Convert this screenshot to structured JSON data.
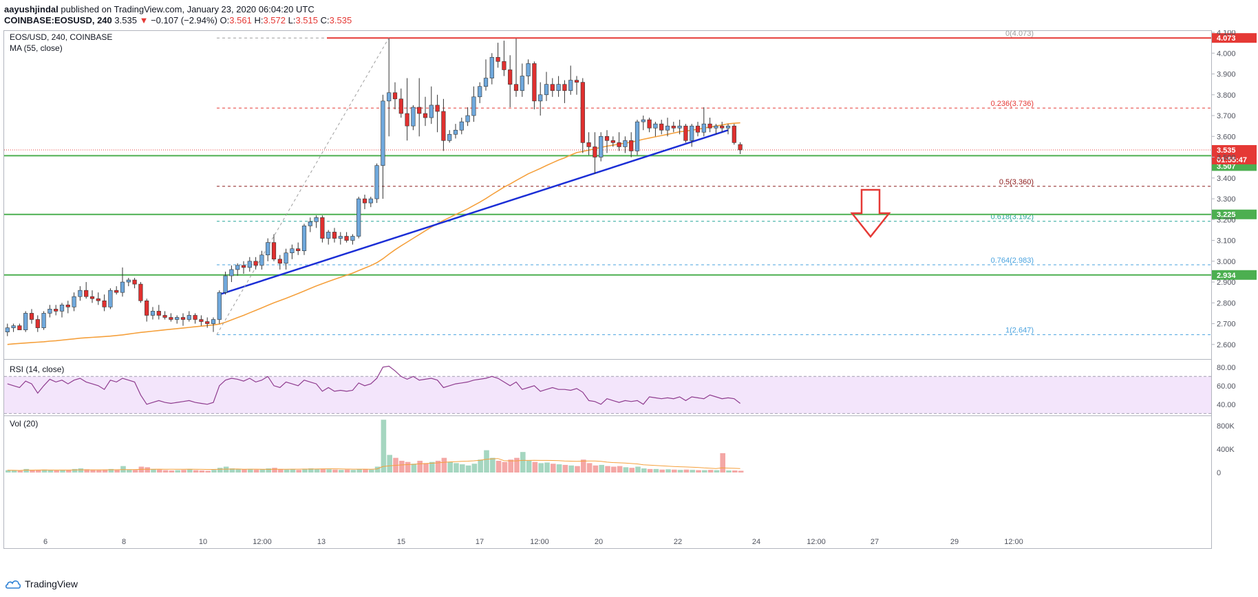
{
  "header": {
    "author": "aayushjindal",
    "published_text": "published on TradingView.com, January 23, 2020 06:04:20 UTC",
    "symbol": "COINBASE:EOSUSD, 240",
    "last": "3.535",
    "change": "−0.107 (−2.94%)",
    "o_label": "O:",
    "o": "3.561",
    "h_label": "H:",
    "h": "3.572",
    "l_label": "L:",
    "l": "3.515",
    "c_label": "C:",
    "c": "3.535"
  },
  "legend": {
    "title": "EOS/USD, 240, COINBASE",
    "ma": "MA (55, close)",
    "rsi": "RSI (14, close)",
    "vol": "Vol (20)"
  },
  "footer": {
    "brand": "TradingView"
  },
  "colors": {
    "up": "#6fa8dc",
    "down": "#e0302f",
    "ma": "#f5a03c",
    "trend": "#1b2ed6",
    "support": "#4caf50",
    "resistance": "#e53935",
    "rsi": "#8e3b8e",
    "rsi_band": "#f3e5fb"
  },
  "chart_data": {
    "type": "candlestick",
    "symbol": "EOS/USD",
    "timeframe": "240",
    "exchange": "COINBASE",
    "price_axis": [
      "2.600",
      "2.700",
      "2.800",
      "2.900",
      "3.000",
      "3.100",
      "3.200",
      "3.300",
      "3.400",
      "3.500",
      "3.600",
      "3.700",
      "3.800",
      "3.900",
      "4.000",
      "4.100"
    ],
    "ylim": [
      2.53,
      4.11
    ],
    "x_ticks": [
      "6",
      "8",
      "10",
      "12:00",
      "13",
      "15",
      "17",
      "12:00",
      "20",
      "22",
      "24",
      "12:00",
      "27",
      "29",
      "12:00"
    ],
    "candles": [
      [
        2.66,
        2.7,
        2.64,
        2.68
      ],
      [
        2.68,
        2.7,
        2.66,
        2.69
      ],
      [
        2.69,
        2.7,
        2.67,
        2.67
      ],
      [
        2.67,
        2.76,
        2.66,
        2.75
      ],
      [
        2.75,
        2.77,
        2.7,
        2.72
      ],
      [
        2.72,
        2.74,
        2.66,
        2.68
      ],
      [
        2.68,
        2.76,
        2.67,
        2.75
      ],
      [
        2.75,
        2.79,
        2.73,
        2.77
      ],
      [
        2.77,
        2.79,
        2.74,
        2.76
      ],
      [
        2.76,
        2.8,
        2.73,
        2.79
      ],
      [
        2.79,
        2.81,
        2.75,
        2.78
      ],
      [
        2.78,
        2.85,
        2.76,
        2.83
      ],
      [
        2.83,
        2.88,
        2.81,
        2.86
      ],
      [
        2.86,
        2.9,
        2.82,
        2.83
      ],
      [
        2.83,
        2.86,
        2.8,
        2.82
      ],
      [
        2.82,
        2.85,
        2.79,
        2.81
      ],
      [
        2.81,
        2.84,
        2.76,
        2.78
      ],
      [
        2.78,
        2.87,
        2.77,
        2.86
      ],
      [
        2.86,
        2.88,
        2.84,
        2.85
      ],
      [
        2.85,
        2.97,
        2.83,
        2.9
      ],
      [
        2.9,
        2.92,
        2.88,
        2.91
      ],
      [
        2.91,
        2.92,
        2.87,
        2.89
      ],
      [
        2.89,
        2.9,
        2.8,
        2.81
      ],
      [
        2.81,
        2.82,
        2.71,
        2.74
      ],
      [
        2.74,
        2.78,
        2.72,
        2.76
      ],
      [
        2.76,
        2.79,
        2.72,
        2.74
      ],
      [
        2.74,
        2.76,
        2.72,
        2.73
      ],
      [
        2.73,
        2.75,
        2.71,
        2.72
      ],
      [
        2.72,
        2.74,
        2.7,
        2.73
      ],
      [
        2.73,
        2.75,
        2.69,
        2.72
      ],
      [
        2.72,
        2.76,
        2.71,
        2.74
      ],
      [
        2.74,
        2.75,
        2.7,
        2.72
      ],
      [
        2.72,
        2.74,
        2.69,
        2.71
      ],
      [
        2.71,
        2.73,
        2.68,
        2.7
      ],
      [
        2.7,
        2.73,
        2.66,
        2.72
      ],
      [
        2.72,
        2.86,
        2.7,
        2.85
      ],
      [
        2.85,
        2.95,
        2.84,
        2.93
      ],
      [
        2.93,
        2.98,
        2.9,
        2.96
      ],
      [
        2.96,
        2.99,
        2.93,
        2.98
      ],
      [
        2.98,
        3.0,
        2.94,
        2.97
      ],
      [
        2.97,
        3.02,
        2.95,
        3.0
      ],
      [
        3.0,
        3.02,
        2.96,
        2.98
      ],
      [
        2.98,
        3.05,
        2.96,
        3.03
      ],
      [
        3.03,
        3.11,
        3.0,
        3.09
      ],
      [
        3.09,
        3.13,
        3.0,
        3.01
      ],
      [
        3.01,
        3.03,
        2.96,
        2.99
      ],
      [
        2.99,
        3.06,
        2.96,
        3.04
      ],
      [
        3.04,
        3.08,
        3.01,
        3.06
      ],
      [
        3.06,
        3.09,
        3.03,
        3.05
      ],
      [
        3.05,
        3.18,
        3.03,
        3.17
      ],
      [
        3.17,
        3.21,
        3.14,
        3.19
      ],
      [
        3.19,
        3.22,
        3.16,
        3.21
      ],
      [
        3.21,
        3.22,
        3.09,
        3.11
      ],
      [
        3.11,
        3.15,
        3.08,
        3.14
      ],
      [
        3.14,
        3.16,
        3.09,
        3.11
      ],
      [
        3.11,
        3.14,
        3.08,
        3.12
      ],
      [
        3.12,
        3.14,
        3.09,
        3.1
      ],
      [
        3.1,
        3.13,
        3.08,
        3.12
      ],
      [
        3.12,
        3.31,
        3.11,
        3.3
      ],
      [
        3.3,
        3.32,
        3.25,
        3.28
      ],
      [
        3.28,
        3.31,
        3.26,
        3.3
      ],
      [
        3.3,
        3.47,
        3.28,
        3.46
      ],
      [
        3.46,
        3.8,
        3.3,
        3.77
      ],
      [
        3.77,
        4.07,
        3.6,
        3.81
      ],
      [
        3.81,
        3.86,
        3.73,
        3.78
      ],
      [
        3.78,
        3.83,
        3.69,
        3.71
      ],
      [
        3.71,
        3.88,
        3.58,
        3.65
      ],
      [
        3.65,
        3.75,
        3.63,
        3.74
      ],
      [
        3.74,
        3.88,
        3.6,
        3.71
      ],
      [
        3.71,
        3.79,
        3.65,
        3.69
      ],
      [
        3.69,
        3.84,
        3.66,
        3.75
      ],
      [
        3.75,
        3.8,
        3.62,
        3.72
      ],
      [
        3.72,
        3.78,
        3.53,
        3.58
      ],
      [
        3.58,
        3.63,
        3.57,
        3.61
      ],
      [
        3.61,
        3.66,
        3.59,
        3.63
      ],
      [
        3.63,
        3.69,
        3.61,
        3.67
      ],
      [
        3.67,
        3.74,
        3.65,
        3.7
      ],
      [
        3.7,
        3.84,
        3.67,
        3.79
      ],
      [
        3.79,
        3.86,
        3.76,
        3.84
      ],
      [
        3.84,
        3.97,
        3.82,
        3.88
      ],
      [
        3.88,
        4.0,
        3.85,
        3.98
      ],
      [
        3.98,
        4.05,
        3.93,
        3.96
      ],
      [
        3.96,
        4.06,
        3.89,
        3.92
      ],
      [
        3.92,
        3.99,
        3.74,
        3.85
      ],
      [
        3.85,
        4.07,
        3.79,
        3.82
      ],
      [
        3.82,
        3.95,
        3.79,
        3.89
      ],
      [
        3.89,
        3.97,
        3.85,
        3.95
      ],
      [
        3.95,
        3.96,
        3.73,
        3.77
      ],
      [
        3.77,
        3.86,
        3.7,
        3.8
      ],
      [
        3.8,
        3.91,
        3.77,
        3.85
      ],
      [
        3.85,
        3.88,
        3.79,
        3.82
      ],
      [
        3.82,
        3.89,
        3.79,
        3.85
      ],
      [
        3.85,
        3.87,
        3.76,
        3.82
      ],
      [
        3.82,
        3.94,
        3.8,
        3.87
      ],
      [
        3.87,
        3.89,
        3.8,
        3.86
      ],
      [
        3.86,
        3.88,
        3.52,
        3.57
      ],
      [
        3.57,
        3.62,
        3.51,
        3.55
      ],
      [
        3.55,
        3.62,
        3.42,
        3.5
      ],
      [
        3.5,
        3.62,
        3.48,
        3.6
      ],
      [
        3.6,
        3.63,
        3.52,
        3.58
      ],
      [
        3.58,
        3.6,
        3.55,
        3.57
      ],
      [
        3.57,
        3.62,
        3.53,
        3.55
      ],
      [
        3.55,
        3.6,
        3.52,
        3.58
      ],
      [
        3.58,
        3.62,
        3.5,
        3.53
      ],
      [
        3.53,
        3.68,
        3.51,
        3.67
      ],
      [
        3.67,
        3.7,
        3.63,
        3.68
      ],
      [
        3.68,
        3.69,
        3.62,
        3.64
      ],
      [
        3.64,
        3.67,
        3.6,
        3.66
      ],
      [
        3.66,
        3.68,
        3.61,
        3.63
      ],
      [
        3.63,
        3.69,
        3.6,
        3.65
      ],
      [
        3.65,
        3.67,
        3.62,
        3.64
      ],
      [
        3.64,
        3.68,
        3.61,
        3.65
      ],
      [
        3.65,
        3.66,
        3.57,
        3.58
      ],
      [
        3.58,
        3.66,
        3.55,
        3.65
      ],
      [
        3.65,
        3.67,
        3.6,
        3.62
      ],
      [
        3.62,
        3.74,
        3.6,
        3.66
      ],
      [
        3.66,
        3.69,
        3.62,
        3.64
      ],
      [
        3.64,
        3.66,
        3.61,
        3.65
      ],
      [
        3.65,
        3.67,
        3.62,
        3.64
      ],
      [
        3.64,
        3.66,
        3.61,
        3.65
      ],
      [
        3.65,
        3.66,
        3.56,
        3.57
      ],
      [
        3.561,
        3.572,
        3.515,
        3.535
      ]
    ],
    "ma55": [
      2.6,
      2.603,
      2.605,
      2.607,
      2.609,
      2.611,
      2.613,
      2.616,
      2.618,
      2.621,
      2.624,
      2.627,
      2.63,
      2.632,
      2.634,
      2.636,
      2.638,
      2.64,
      2.643,
      2.646,
      2.65,
      2.654,
      2.658,
      2.661,
      2.664,
      2.667,
      2.67,
      2.673,
      2.676,
      2.679,
      2.682,
      2.685,
      2.688,
      2.691,
      2.694,
      2.698,
      2.707,
      2.718,
      2.729,
      2.74,
      2.752,
      2.764,
      2.776,
      2.788,
      2.8,
      2.811,
      2.822,
      2.833,
      2.845,
      2.857,
      2.869,
      2.881,
      2.892,
      2.903,
      2.913,
      2.923,
      2.933,
      2.943,
      2.955,
      2.967,
      2.979,
      2.993,
      3.012,
      3.034,
      3.055,
      3.074,
      3.092,
      3.11,
      3.128,
      3.146,
      3.164,
      3.181,
      3.196,
      3.21,
      3.224,
      3.238,
      3.252,
      3.268,
      3.284,
      3.301,
      3.32,
      3.338,
      3.356,
      3.371,
      3.388,
      3.404,
      3.42,
      3.433,
      3.446,
      3.46,
      3.473,
      3.486,
      3.497,
      3.51,
      3.522,
      3.528,
      3.534,
      3.54,
      3.547,
      3.553,
      3.558,
      3.563,
      3.568,
      3.572,
      3.579,
      3.586,
      3.592,
      3.598,
      3.604,
      3.61,
      3.616,
      3.622,
      3.625,
      3.63,
      3.634,
      3.64,
      3.645,
      3.65,
      3.655,
      3.66,
      3.663,
      3.665
    ],
    "volume": [
      40,
      35,
      30,
      60,
      40,
      45,
      50,
      40,
      35,
      45,
      40,
      60,
      70,
      55,
      45,
      40,
      50,
      60,
      45,
      110,
      50,
      45,
      100,
      90,
      60,
      50,
      40,
      35,
      40,
      45,
      55,
      40,
      35,
      30,
      45,
      80,
      100,
      70,
      65,
      55,
      60,
      50,
      55,
      70,
      80,
      60,
      50,
      55,
      45,
      65,
      70,
      60,
      65,
      55,
      50,
      45,
      50,
      45,
      55,
      60,
      50,
      100,
      900,
      300,
      250,
      200,
      180,
      150,
      200,
      160,
      180,
      200,
      250,
      180,
      160,
      140,
      120,
      150,
      220,
      380,
      250,
      200,
      180,
      220,
      250,
      350,
      200,
      180,
      160,
      170,
      150,
      140,
      130,
      120,
      110,
      220,
      160,
      120,
      130,
      110,
      100,
      110,
      90,
      80,
      100,
      70,
      60,
      60,
      50,
      55,
      50,
      45,
      50,
      45,
      40,
      40,
      45,
      40,
      330,
      35,
      35,
      30
    ],
    "volume_axis": [
      "0",
      "400K",
      "800K"
    ],
    "rsi_axis": [
      "40.00",
      "60.00",
      "80.00"
    ],
    "rsi_band": [
      30,
      70
    ],
    "rsi": [
      62,
      60,
      58,
      65,
      62,
      52,
      60,
      67,
      64,
      66,
      62,
      66,
      68,
      64,
      62,
      60,
      56,
      66,
      64,
      68,
      66,
      64,
      50,
      40,
      42,
      44,
      42,
      41,
      42,
      43,
      44,
      42,
      41,
      40,
      42,
      60,
      66,
      68,
      67,
      65,
      68,
      64,
      66,
      70,
      60,
      58,
      64,
      62,
      60,
      66,
      64,
      62,
      54,
      58,
      54,
      55,
      54,
      55,
      63,
      60,
      62,
      68,
      80,
      81,
      76,
      70,
      67,
      70,
      66,
      67,
      68,
      66,
      58,
      60,
      62,
      63,
      64,
      66,
      67,
      68,
      70,
      68,
      64,
      60,
      64,
      56,
      58,
      60,
      54,
      56,
      58,
      56,
      56,
      55,
      57,
      53,
      44,
      43,
      40,
      46,
      44,
      42,
      44,
      43,
      44,
      40,
      48,
      47,
      46,
      47,
      46,
      48,
      44,
      48,
      47,
      46,
      50,
      48,
      46,
      47,
      46,
      41
    ],
    "levels": {
      "resistance": {
        "value": "4.073"
      },
      "support_1": {
        "value": "3.507"
      },
      "support_2": {
        "value": "3.225"
      },
      "support_3": {
        "value": "2.934"
      },
      "current": {
        "value": "3.535",
        "time_left": "01:55:47"
      }
    },
    "fib": [
      {
        "label": "0(4.073)",
        "value": 4.073
      },
      {
        "label": "0.236(3.736)",
        "value": 3.736
      },
      {
        "label": "0.5(3.360)",
        "value": 3.36
      },
      {
        "label": "0.618(3.192)",
        "value": 3.192
      },
      {
        "label": "0.764(2.983)",
        "value": 2.983
      },
      {
        "label": "1(2.647)",
        "value": 2.647
      }
    ],
    "trendline": {
      "from": [
        35,
        2.84
      ],
      "to": [
        119,
        3.63
      ]
    }
  }
}
